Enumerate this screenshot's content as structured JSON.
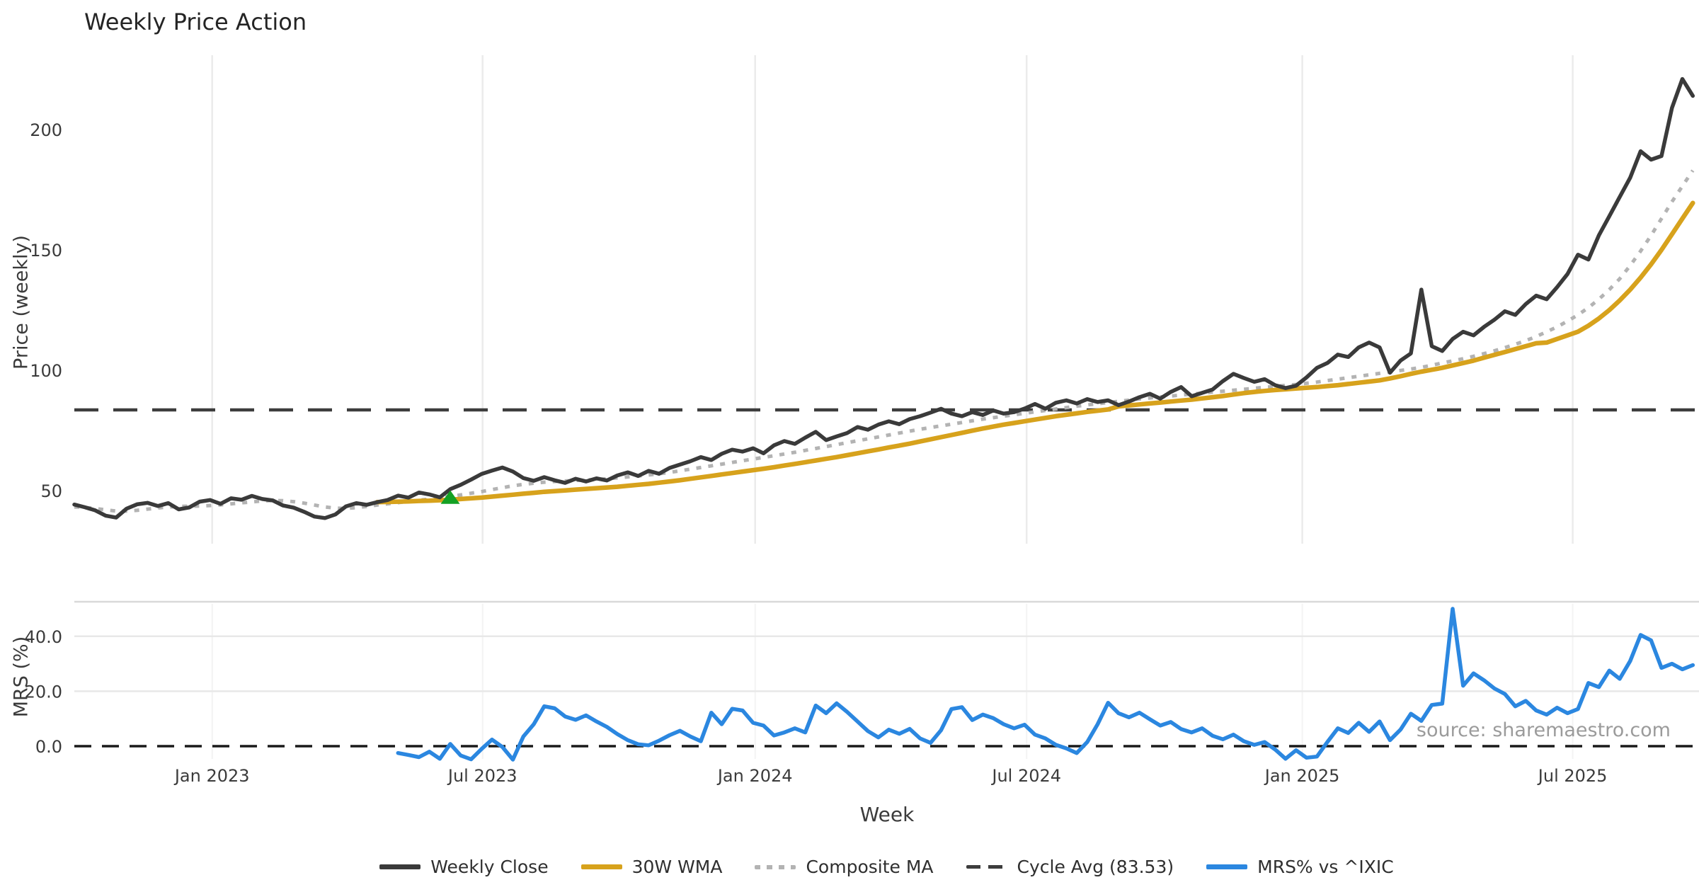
{
  "title": "Weekly Price Action",
  "x_axis": {
    "label": "Week",
    "ticks": [
      {
        "label": "Jan 2023",
        "week": 13.2
      },
      {
        "label": "Jul 2023",
        "week": 39.1
      },
      {
        "label": "Jan 2024",
        "week": 65.2
      },
      {
        "label": "Jul 2024",
        "week": 91.2
      },
      {
        "label": "Jan 2025",
        "week": 117.6
      },
      {
        "label": "Jul 2025",
        "week": 143.5
      }
    ]
  },
  "legend": [
    {
      "label": "Weekly Close",
      "color": "#3a3a3a",
      "style": "solid"
    },
    {
      "label": "30W WMA",
      "color": "#d7a21c",
      "style": "solid"
    },
    {
      "label": "Composite MA",
      "color": "#b3b3b3",
      "style": "dotted"
    },
    {
      "label": "Cycle Avg (83.53)",
      "color": "#3d3d3d",
      "style": "dashed"
    },
    {
      "label": "MRS% vs ^IXIC",
      "color": "#2b87e0",
      "style": "solid"
    }
  ],
  "chart_data": [
    {
      "type": "line",
      "panel": "price",
      "title": "Weekly Price Action",
      "ylabel": "Price (weekly)",
      "ylim": [
        26,
        231
      ],
      "yticks": [
        {
          "v": 50,
          "label": "50"
        },
        {
          "v": 100,
          "label": "100"
        },
        {
          "v": 150,
          "label": "150"
        },
        {
          "v": 200,
          "label": "200"
        }
      ],
      "x_unit": "week_index_from_2022-10-03",
      "signal_marker": {
        "shape": "triangle-up",
        "color": "#13a023",
        "week": 36,
        "value": 46.2
      },
      "series": [
        {
          "name": "Weekly Close",
          "color": "#3a3a3a",
          "style": "solid",
          "start_week": 0,
          "values": [
            44.2,
            43.1,
            41.8,
            39.6,
            38.8,
            42.5,
            44.3,
            44.9,
            43.6,
            44.8,
            42.2,
            43.0,
            45.4,
            46.1,
            44.5,
            46.8,
            46.2,
            47.8,
            46.5,
            45.9,
            43.8,
            42.9,
            41.2,
            39.2,
            38.6,
            40.1,
            43.4,
            44.8,
            44.1,
            45.2,
            46.1,
            47.9,
            47.1,
            49.2,
            48.4,
            47.2,
            50.6,
            52.4,
            54.6,
            56.9,
            58.3,
            59.6,
            57.9,
            55.2,
            54.1,
            55.6,
            54.3,
            53.2,
            54.9,
            53.8,
            55.1,
            54.2,
            56.3,
            57.6,
            56.1,
            58.2,
            57.0,
            59.4,
            60.8,
            62.2,
            63.9,
            62.7,
            65.3,
            67.0,
            66.2,
            67.6,
            65.5,
            68.8,
            70.6,
            69.4,
            72.0,
            74.4,
            71.0,
            72.5,
            73.9,
            76.4,
            75.3,
            77.4,
            78.8,
            77.6,
            79.7,
            80.9,
            82.4,
            84.0,
            82.0,
            80.9,
            82.6,
            81.4,
            83.3,
            82.0,
            82.6,
            84.1,
            86.0,
            84.0,
            86.5,
            87.5,
            86.2,
            88.0,
            86.8,
            87.5,
            85.5,
            87.0,
            88.8,
            90.2,
            88.2,
            91.0,
            93.0,
            89.2,
            90.6,
            92.0,
            95.5,
            98.5,
            96.8,
            95.2,
            96.3,
            93.8,
            92.6,
            93.6,
            97.0,
            101.0,
            103.0,
            106.5,
            105.5,
            109.5,
            111.5,
            109.5,
            99.0,
            104.0,
            107.0,
            133.5,
            110.0,
            108.0,
            113.0,
            116.0,
            114.5,
            118.0,
            121.0,
            124.5,
            123.0,
            127.5,
            131.0,
            129.5,
            134.5,
            140.0,
            148.0,
            146.0,
            156.0,
            164.0,
            172.0,
            180.0,
            191.0,
            187.5,
            189.0,
            209.0,
            221.0,
            214.0
          ]
        },
        {
          "name": "30W WMA",
          "color": "#d7a21c",
          "style": "solid",
          "start_week": 29,
          "values": [
            45.2,
            45.3,
            45.4,
            45.5,
            45.7,
            45.8,
            46.0,
            46.2,
            46.5,
            46.8,
            47.1,
            47.5,
            47.9,
            48.3,
            48.7,
            49.1,
            49.5,
            49.8,
            50.1,
            50.4,
            50.7,
            51.0,
            51.3,
            51.6,
            52.0,
            52.4,
            52.8,
            53.3,
            53.8,
            54.3,
            54.9,
            55.5,
            56.1,
            56.7,
            57.3,
            57.9,
            58.5,
            59.1,
            59.7,
            60.4,
            61.1,
            61.8,
            62.5,
            63.2,
            63.9,
            64.7,
            65.5,
            66.3,
            67.1,
            67.9,
            68.7,
            69.5,
            70.4,
            71.3,
            72.2,
            73.1,
            74.0,
            74.9,
            75.8,
            76.6,
            77.4,
            78.1,
            78.8,
            79.5,
            80.2,
            80.9,
            81.5,
            82.1,
            82.7,
            83.2,
            83.7,
            85.0,
            85.4,
            85.8,
            86.2,
            86.6,
            87.0,
            87.4,
            87.8,
            88.3,
            88.8,
            89.3,
            89.9,
            90.5,
            91.0,
            91.4,
            91.8,
            92.1,
            92.4,
            92.7,
            93.0,
            93.4,
            93.8,
            94.3,
            94.8,
            95.3,
            95.8,
            96.6,
            97.5,
            98.5,
            99.4,
            100.2,
            101.0,
            102.0,
            103.0,
            104.0,
            105.2,
            106.4,
            107.6,
            108.8,
            110.0,
            111.2,
            111.5,
            113.0,
            114.5,
            116.0,
            118.5,
            121.5,
            125.0,
            129.0,
            133.5,
            138.5,
            144.0,
            150.0,
            156.5,
            163.0,
            169.5
          ]
        },
        {
          "name": "Composite MA",
          "color": "#b3b3b3",
          "style": "dotted",
          "start_week": 0,
          "values": [
            43.2,
            43.0,
            42.6,
            42.0,
            41.5,
            41.5,
            41.8,
            42.3,
            42.8,
            43.2,
            43.4,
            43.5,
            43.6,
            43.8,
            44.1,
            44.5,
            44.9,
            45.3,
            45.7,
            45.9,
            45.8,
            45.4,
            44.8,
            44.0,
            43.2,
            42.7,
            42.6,
            42.9,
            43.4,
            44.0,
            44.5,
            45.0,
            45.5,
            46.0,
            46.5,
            47.0,
            47.6,
            48.2,
            48.9,
            49.6,
            50.4,
            51.2,
            52.0,
            52.6,
            53.1,
            53.5,
            53.8,
            54.0,
            54.2,
            54.4,
            54.6,
            54.9,
            55.3,
            55.7,
            56.1,
            56.5,
            57.0,
            57.6,
            58.2,
            58.9,
            59.6,
            60.3,
            61.0,
            61.7,
            62.4,
            63.1,
            63.8,
            64.5,
            65.2,
            65.9,
            66.7,
            67.5,
            68.3,
            69.1,
            69.9,
            70.7,
            71.5,
            72.3,
            73.1,
            73.9,
            74.7,
            75.5,
            76.2,
            76.9,
            77.6,
            78.3,
            79.0,
            79.7,
            80.3,
            80.9,
            81.5,
            82.1,
            82.7,
            83.3,
            83.9,
            84.5,
            85.1,
            85.6,
            86.1,
            86.6,
            87.1,
            87.6,
            88.1,
            88.5,
            88.9,
            89.3,
            89.7,
            90.1,
            90.5,
            90.9,
            91.3,
            91.7,
            92.1,
            92.5,
            92.9,
            93.3,
            93.7,
            94.1,
            94.6,
            95.1,
            95.7,
            96.3,
            96.9,
            97.5,
            98.1,
            98.7,
            99.3,
            99.9,
            100.5,
            101.2,
            102.1,
            103.0,
            103.9,
            104.8,
            105.8,
            106.9,
            108.1,
            109.4,
            110.8,
            112.3,
            114.0,
            116.0,
            118.0,
            120.4,
            123.0,
            126.0,
            129.5,
            133.5,
            138.0,
            143.5,
            149.5,
            156.0,
            163.0,
            170.0,
            176.5,
            183.0
          ]
        },
        {
          "name": "Cycle Avg (83.53)",
          "color": "#3d3d3d",
          "style": "dashed",
          "value": 83.53
        }
      ]
    },
    {
      "type": "line",
      "panel": "mrs",
      "ylabel": "MRS (%)",
      "ylim": [
        -8,
        52.6
      ],
      "yticks": [
        {
          "v": 0,
          "label": "0.0"
        },
        {
          "v": 20,
          "label": "20.0"
        },
        {
          "v": 40,
          "label": "40.0"
        }
      ],
      "zero_line": true,
      "source_note": "source: sharemaestro.com",
      "series": [
        {
          "name": "MRS% vs ^IXIC",
          "color": "#2b87e0",
          "style": "solid",
          "start_week": 31,
          "values": [
            -2.5,
            -3.2,
            -4.0,
            -2.0,
            -4.6,
            0.8,
            -3.4,
            -4.8,
            -1.0,
            2.4,
            -0.3,
            -4.9,
            3.5,
            8.0,
            14.5,
            13.8,
            10.8,
            9.6,
            11.2,
            9.0,
            7.0,
            4.4,
            2.2,
            0.7,
            0.3,
            2.0,
            4.0,
            5.6,
            3.5,
            1.8,
            12.2,
            8.0,
            13.6,
            13.0,
            8.5,
            7.5,
            3.9,
            5.0,
            6.5,
            5.0,
            14.8,
            12.0,
            15.6,
            12.5,
            9.0,
            5.5,
            3.2,
            6.0,
            4.5,
            6.3,
            2.8,
            1.2,
            5.8,
            13.5,
            14.2,
            9.5,
            11.5,
            10.2,
            8.0,
            6.5,
            7.8,
            4.2,
            2.8,
            0.5,
            -0.8,
            -2.5,
            1.5,
            8.0,
            15.8,
            12.0,
            10.5,
            12.2,
            9.8,
            7.5,
            8.8,
            6.2,
            5.0,
            6.5,
            3.8,
            2.5,
            4.2,
            1.8,
            0.5,
            1.5,
            -1.2,
            -4.6,
            -1.5,
            -4.2,
            -3.8,
            1.5,
            6.5,
            4.8,
            8.5,
            5.2,
            9.0,
            2.2,
            6.0,
            11.8,
            9.2,
            15.0,
            15.5,
            50.0,
            22.0,
            26.5,
            24.0,
            21.0,
            19.0,
            14.5,
            16.5,
            13.0,
            11.5,
            14.0,
            12.0,
            13.5,
            23.0,
            21.5,
            27.5,
            24.5,
            31.0,
            40.5,
            38.5,
            28.5,
            30.0,
            28.0,
            29.5
          ]
        }
      ]
    }
  ]
}
